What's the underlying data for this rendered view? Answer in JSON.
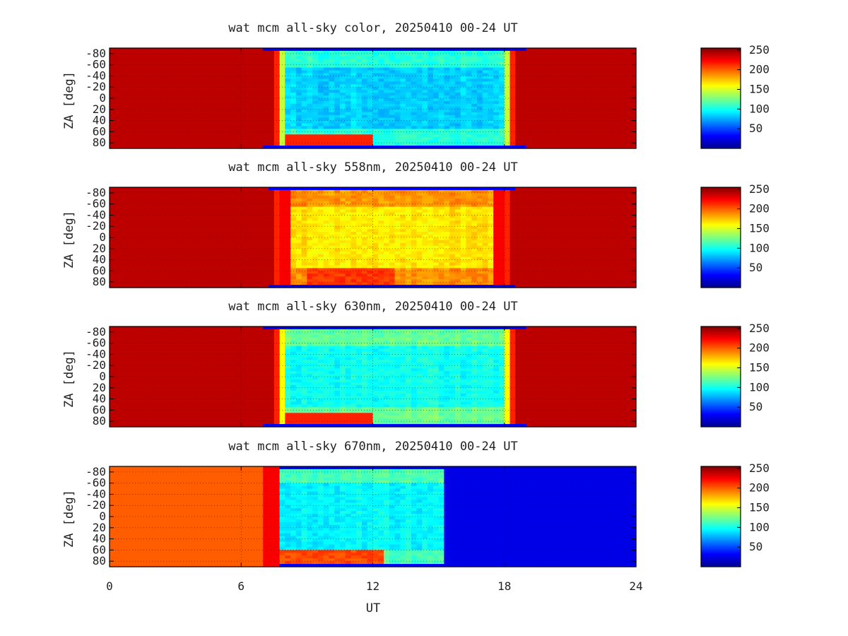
{
  "chart_data": [
    {
      "type": "heatmap",
      "title": "wat mcm all-sky color, 20250410 00-24 UT",
      "xlabel": "UT",
      "ylabel": "ZA [deg]",
      "xlim": [
        0,
        24
      ],
      "ylim": [
        -90,
        90
      ],
      "x_ticks": [
        "0",
        "6",
        "12",
        "18",
        "24"
      ],
      "y_ticks": [
        "-80",
        "-60",
        "-40",
        "-20",
        "0",
        "20",
        "40",
        "60",
        "80"
      ],
      "colorbar_ticks": [
        "250",
        "200",
        "150",
        "100",
        "50"
      ],
      "colorbar_range": [
        0,
        255
      ],
      "grid": true,
      "regions": {
        "day_start_ut": 7.5,
        "day_end_ut": 18.6,
        "night_value": 240,
        "day_value": 85
      }
    },
    {
      "type": "heatmap",
      "title": "wat mcm all-sky 558nm, 20250410 00-24 UT",
      "xlabel": "UT",
      "ylabel": "ZA [deg]",
      "xlim": [
        0,
        24
      ],
      "ylim": [
        -90,
        90
      ],
      "x_ticks": [
        "0",
        "6",
        "12",
        "18",
        "24"
      ],
      "y_ticks": [
        "-80",
        "-60",
        "-40",
        "-20",
        "0",
        "20",
        "40",
        "60",
        "80"
      ],
      "colorbar_ticks": [
        "250",
        "200",
        "150",
        "100",
        "50"
      ],
      "colorbar_range": [
        0,
        255
      ],
      "grid": true,
      "regions": {
        "day_start_ut": 7.6,
        "day_end_ut": 18.2,
        "night_value": 240,
        "day_value": 165
      }
    },
    {
      "type": "heatmap",
      "title": "wat mcm all-sky 630nm, 20250410 00-24 UT",
      "xlabel": "UT",
      "ylabel": "ZA [deg]",
      "xlim": [
        0,
        24
      ],
      "ylim": [
        -90,
        90
      ],
      "x_ticks": [
        "0",
        "6",
        "12",
        "18",
        "24"
      ],
      "y_ticks": [
        "-80",
        "-60",
        "-40",
        "-20",
        "0",
        "20",
        "40",
        "60",
        "80"
      ],
      "colorbar_ticks": [
        "250",
        "200",
        "150",
        "100",
        "50"
      ],
      "colorbar_range": [
        0,
        255
      ],
      "grid": true,
      "regions": {
        "day_start_ut": 7.5,
        "day_end_ut": 18.6,
        "night_value": 240,
        "day_value": 100
      }
    },
    {
      "type": "heatmap",
      "title": "wat mcm all-sky 670nm, 20250410 00-24 UT",
      "xlabel": "UT",
      "ylabel": "ZA [deg]",
      "xlim": [
        0,
        24
      ],
      "ylim": [
        -90,
        90
      ],
      "x_ticks": [
        "0",
        "6",
        "12",
        "18",
        "24"
      ],
      "y_ticks": [
        "-80",
        "-60",
        "-40",
        "-20",
        "0",
        "20",
        "40",
        "60",
        "80"
      ],
      "colorbar_ticks": [
        "250",
        "200",
        "150",
        "100",
        "50"
      ],
      "colorbar_range": [
        0,
        255
      ],
      "grid": true,
      "regions": {
        "night_ut_end": 7.0,
        "twilight_ut_end": 7.8,
        "day_end_ut": 15.2,
        "night_value": 200,
        "twilight_value": 225,
        "day_value": 95,
        "off_value": 25
      }
    }
  ],
  "colors": {
    "jet_stops": [
      "#00008f",
      "#0000ff",
      "#00ffff",
      "#ffff00",
      "#ff0000",
      "#800000"
    ],
    "frame": "#000000"
  }
}
